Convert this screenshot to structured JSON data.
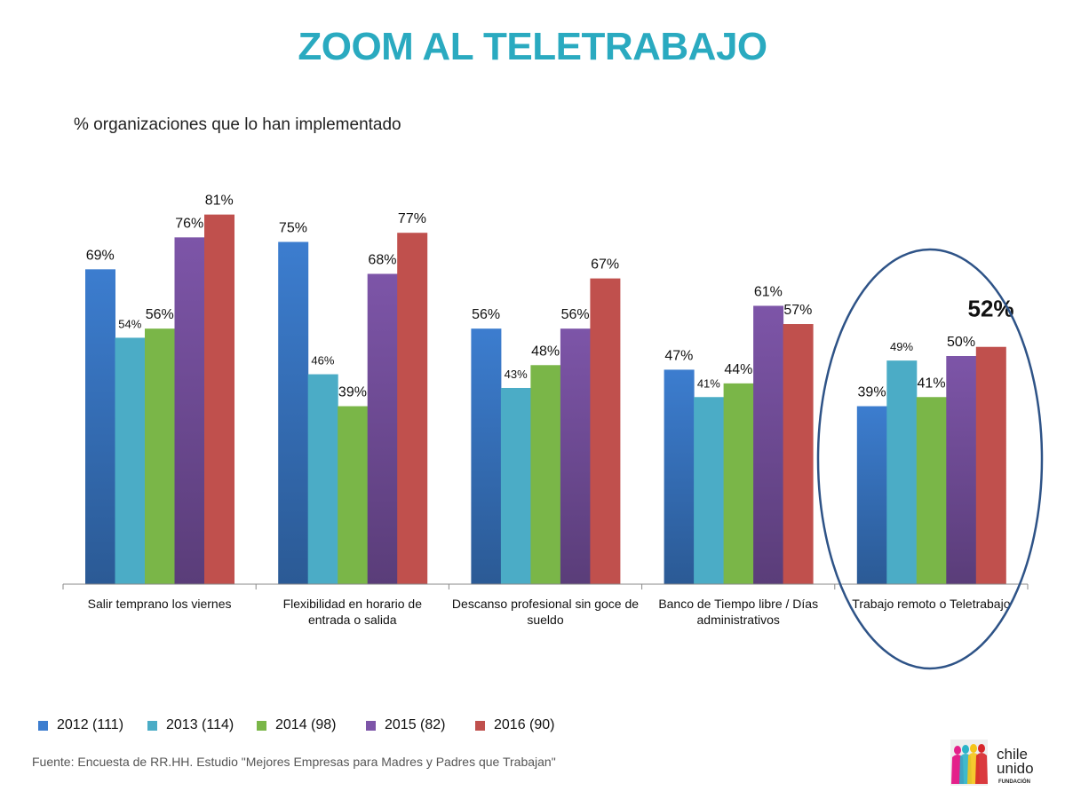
{
  "title": "ZOOM AL TELETRABAJO",
  "subtitle": "% organizaciones que lo han implementado",
  "source": "Fuente: Encuesta de RR.HH. Estudio \"Mejores Empresas para Madres y Padres que Trabajan\"",
  "logo": {
    "text": "chile unido",
    "subtext": "FUNDACIÓN"
  },
  "chart_data": {
    "type": "bar",
    "title": "ZOOM AL TELETRABAJO",
    "ylabel": "% organizaciones que lo han implementado",
    "ylim": [
      0,
      100
    ],
    "grid": false,
    "legend_position": "bottom-left",
    "categories": [
      "Salir temprano los viernes",
      "Flexibilidad en horario de entrada o salida",
      "Descanso profesional sin goce de sueldo",
      "Banco de Tiempo libre / Días administrativos",
      "Trabajo remoto o Teletrabajo"
    ],
    "series": [
      {
        "name": "2012 (111)",
        "color": "#3C7DCF",
        "values": [
          69,
          75,
          56,
          47,
          39
        ]
      },
      {
        "name": "2013 (114)",
        "color": "#4BACC6",
        "values": [
          54,
          46,
          43,
          41,
          49
        ]
      },
      {
        "name": "2014 (98)",
        "color": "#7AB648",
        "values": [
          56,
          39,
          48,
          44,
          41
        ]
      },
      {
        "name": "2015 (82)",
        "color": "#7D55A8",
        "values": [
          76,
          68,
          56,
          61,
          50
        ]
      },
      {
        "name": "2016 (90)",
        "color": "#C0504D",
        "values": [
          81,
          77,
          67,
          57,
          52
        ]
      }
    ],
    "labels": [
      [
        "69%",
        "75%",
        "56%",
        "47%",
        "39%"
      ],
      [
        "54%",
        "46%",
        "43%",
        "41%",
        "49%"
      ],
      [
        "56%",
        "39%",
        "48%",
        "44%",
        "41%"
      ],
      [
        "76%",
        "68%",
        "56%",
        "61%",
        "50%"
      ],
      [
        "81%",
        "77%",
        "67%",
        "57%",
        "52%"
      ]
    ],
    "highlight": {
      "category": "Trabajo remoto o Teletrabajo",
      "label": "52%",
      "outline_color": "#2E5387"
    }
  }
}
